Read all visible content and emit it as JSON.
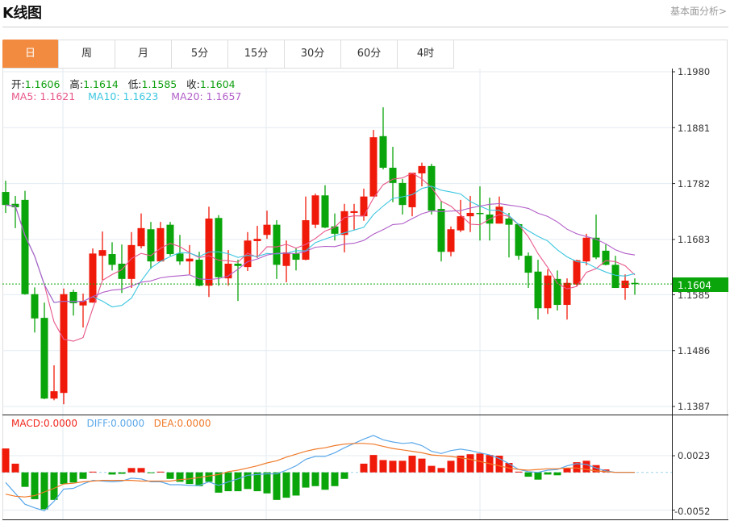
{
  "header": {
    "title": "K线图",
    "link": "基本面分析>"
  },
  "tabs": [
    {
      "label": "日",
      "active": true
    },
    {
      "label": "周"
    },
    {
      "label": "月"
    },
    {
      "label": "5分"
    },
    {
      "label": "15分"
    },
    {
      "label": "30分"
    },
    {
      "label": "60分"
    },
    {
      "label": "4时"
    }
  ],
  "ohlc_info": {
    "open_label": "开:",
    "open": "1.1606",
    "high_label": "高:",
    "high": "1.1614",
    "low_label": "低:",
    "low": "1.1585",
    "close_label": "收:",
    "close": "1.1604"
  },
  "ma_info": {
    "ma5": "MA5: 1.1621",
    "ma10": "MA10: 1.1623",
    "ma20": "MA20: 1.1657"
  },
  "macd_info": {
    "macd": "MACD:0.0000",
    "diff": "DIFF:0.0000",
    "dea": "DEA:0.0000"
  },
  "colors": {
    "up": "#f01a0a",
    "down": "#0aa50a",
    "accent": "#f28b40",
    "ma5": "#e8578a",
    "ma10": "#3cc6e0",
    "ma20": "#b15dc8",
    "diff": "#5aa8ea",
    "dea": "#f07a2a"
  },
  "chart_data": [
    {
      "type": "candlestick",
      "price_axis": {
        "ticks": [
          "1.1980",
          "1.1881",
          "1.1782",
          "1.1683",
          "1.1585",
          "1.1486",
          "1.1387"
        ],
        "range": [
          1.1387,
          1.198
        ]
      },
      "current_price": "1.1604",
      "grid": true,
      "moving_averages": [
        5,
        10,
        20
      ],
      "candles_ohlc": [
        [
          1.1767,
          1.1787,
          1.173,
          1.1744
        ],
        [
          1.1746,
          1.176,
          1.1703,
          1.174
        ],
        [
          1.1753,
          1.1769,
          1.1585,
          1.1586
        ],
        [
          1.1586,
          1.1598,
          1.1518,
          1.1543
        ],
        [
          1.1544,
          1.1571,
          1.14,
          1.1401
        ],
        [
          1.1401,
          1.146,
          1.1398,
          1.1414
        ],
        [
          1.1411,
          1.1596,
          1.1391,
          1.1586
        ],
        [
          1.159,
          1.1594,
          1.1548,
          1.157
        ],
        [
          1.1566,
          1.1587,
          1.1527,
          1.1574
        ],
        [
          1.1571,
          1.1667,
          1.1571,
          1.1658
        ],
        [
          1.1654,
          1.1697,
          1.1611,
          1.1664
        ],
        [
          1.1657,
          1.1678,
          1.1628,
          1.1638
        ],
        [
          1.164,
          1.1674,
          1.1588,
          1.1613
        ],
        [
          1.1613,
          1.1696,
          1.1597,
          1.1673
        ],
        [
          1.1671,
          1.1729,
          1.1667,
          1.1703
        ],
        [
          1.1701,
          1.1714,
          1.1631,
          1.1644
        ],
        [
          1.1644,
          1.1714,
          1.1644,
          1.1703
        ],
        [
          1.1709,
          1.1714,
          1.1654,
          1.1657
        ],
        [
          1.1658,
          1.1691,
          1.1638,
          1.1644
        ],
        [
          1.1644,
          1.1673,
          1.1621,
          1.1649
        ],
        [
          1.1647,
          1.1661,
          1.16,
          1.1601
        ],
        [
          1.1601,
          1.1741,
          1.1581,
          1.172
        ],
        [
          1.1721,
          1.1726,
          1.1601,
          1.1616
        ],
        [
          1.1614,
          1.1664,
          1.1601,
          1.164
        ],
        [
          1.164,
          1.1647,
          1.1574,
          1.1636
        ],
        [
          1.1634,
          1.1696,
          1.1627,
          1.1681
        ],
        [
          1.168,
          1.1707,
          1.165,
          1.1684
        ],
        [
          1.1691,
          1.1734,
          1.1684,
          1.1709
        ],
        [
          1.1709,
          1.1717,
          1.1613,
          1.1638
        ],
        [
          1.1636,
          1.1681,
          1.1607,
          1.166
        ],
        [
          1.1658,
          1.1667,
          1.1628,
          1.1647
        ],
        [
          1.1647,
          1.1759,
          1.1646,
          1.1717
        ],
        [
          1.1709,
          1.1764,
          1.1703,
          1.1761
        ],
        [
          1.1761,
          1.1779,
          1.1703,
          1.1704
        ],
        [
          1.1706,
          1.1729,
          1.1681,
          1.1693
        ],
        [
          1.1691,
          1.1746,
          1.166,
          1.1733
        ],
        [
          1.173,
          1.1746,
          1.17,
          1.1733
        ],
        [
          1.1724,
          1.1773,
          1.1716,
          1.1759
        ],
        [
          1.1759,
          1.1877,
          1.1759,
          1.1864
        ],
        [
          1.1866,
          1.1917,
          1.1807,
          1.181
        ],
        [
          1.181,
          1.1847,
          1.1749,
          1.1783
        ],
        [
          1.1783,
          1.179,
          1.1727,
          1.1744
        ],
        [
          1.174,
          1.1801,
          1.1724,
          1.1801
        ],
        [
          1.18,
          1.1819,
          1.1777,
          1.1813
        ],
        [
          1.1813,
          1.1817,
          1.1727,
          1.1734
        ],
        [
          1.1737,
          1.1751,
          1.1644,
          1.1661
        ],
        [
          1.1661,
          1.1706,
          1.1653,
          1.1701
        ],
        [
          1.1699,
          1.1753,
          1.1696,
          1.1724
        ],
        [
          1.1724,
          1.176,
          1.1696,
          1.173
        ],
        [
          1.173,
          1.1777,
          1.1681,
          1.1729
        ],
        [
          1.1727,
          1.1757,
          1.1681,
          1.1711
        ],
        [
          1.1711,
          1.1759,
          1.1711,
          1.1741
        ],
        [
          1.172,
          1.173,
          1.1651,
          1.1709
        ],
        [
          1.171,
          1.1711,
          1.1647,
          1.1654
        ],
        [
          1.1654,
          1.166,
          1.1597,
          1.1624
        ],
        [
          1.1626,
          1.1647,
          1.1541,
          1.1561
        ],
        [
          1.1561,
          1.163,
          1.1551,
          1.1619
        ],
        [
          1.1613,
          1.1628,
          1.1557,
          1.1567
        ],
        [
          1.1567,
          1.1614,
          1.1541,
          1.1606
        ],
        [
          1.1603,
          1.1647,
          1.1601,
          1.1646
        ],
        [
          1.1644,
          1.1693,
          1.1637,
          1.1686
        ],
        [
          1.1686,
          1.1727,
          1.1648,
          1.1651
        ],
        [
          1.1663,
          1.1674,
          1.1637,
          1.1638
        ],
        [
          1.1638,
          1.1654,
          1.1597,
          1.1597
        ],
        [
          1.1597,
          1.1621,
          1.1576,
          1.161
        ],
        [
          1.1606,
          1.1614,
          1.1585,
          1.1604
        ]
      ]
    },
    {
      "type": "macd",
      "axis": {
        "ticks": [
          "0.0023",
          "-0.0052"
        ]
      },
      "histogram": [
        0.0033,
        0.0012,
        -0.002,
        -0.0037,
        -0.0051,
        -0.0038,
        -0.0016,
        -0.0014,
        -0.0009,
        0.0001,
        0,
        -0.0003,
        -0.0002,
        0.0006,
        0.0006,
        -0.0001,
        0.0001,
        -0.0009,
        -0.0013,
        -0.0016,
        -0.0019,
        -0.0013,
        -0.0028,
        -0.0026,
        -0.0026,
        -0.0023,
        -0.0026,
        -0.0029,
        -0.0038,
        -0.0035,
        -0.0032,
        -0.0021,
        -0.0019,
        -0.0024,
        -0.0019,
        -0.0009,
        0,
        0.0012,
        0.0024,
        0.0017,
        0.0016,
        0.0016,
        0.0023,
        0.0019,
        0.0009,
        0.0006,
        0.0016,
        0.0023,
        0.0025,
        0.0026,
        0.0024,
        0.0023,
        0.0013,
        0.0001,
        -0.0006,
        -0.001,
        -0.0003,
        -0.0004,
        0.0006,
        0.0014,
        0.0016,
        0.001,
        0.0004,
        0,
        0,
        0
      ],
      "diff": [
        -0.0014,
        -0.0029,
        -0.0044,
        -0.0049,
        -0.0053,
        -0.004,
        -0.0023,
        -0.0022,
        -0.0016,
        -0.0011,
        -0.0012,
        -0.0013,
        -0.0012,
        -0.0008,
        -0.0009,
        -0.0013,
        -0.0013,
        -0.0017,
        -0.0017,
        -0.0018,
        -0.0018,
        -0.0013,
        -0.0018,
        -0.0013,
        -0.0009,
        -0.0004,
        -0.0003,
        -0.0002,
        -0.0002,
        0.0003,
        0.0009,
        0.0018,
        0.0022,
        0.0022,
        0.0027,
        0.0034,
        0.004,
        0.0046,
        0.0051,
        0.0045,
        0.0042,
        0.004,
        0.0041,
        0.0037,
        0.0029,
        0.0026,
        0.003,
        0.0032,
        0.003,
        0.0027,
        0.0024,
        0.0019,
        0.0012,
        0.0004,
        0.0001,
        0,
        0.0003,
        0.0004,
        0.0009,
        0.0012,
        0.0011,
        0.0006,
        0.0002,
        0,
        0,
        0
      ],
      "dea": [
        -0.003,
        -0.0033,
        -0.0034,
        -0.0032,
        -0.0027,
        -0.0022,
        -0.0016,
        -0.0015,
        -0.0013,
        -0.0012,
        -0.0011,
        -0.0011,
        -0.0011,
        -0.0011,
        -0.0012,
        -0.0012,
        -0.0012,
        -0.0012,
        -0.001,
        -0.0009,
        -0.0007,
        -0.0005,
        -0.0003,
        0.0001,
        0.0003,
        0.0006,
        0.0009,
        0.0013,
        0.0016,
        0.0021,
        0.0025,
        0.0029,
        0.0032,
        0.0034,
        0.0037,
        0.0039,
        0.004,
        0.004,
        0.0039,
        0.0036,
        0.0033,
        0.0031,
        0.0029,
        0.0027,
        0.0024,
        0.0023,
        0.0022,
        0.002,
        0.0018,
        0.0015,
        0.0012,
        0.0009,
        0.0006,
        0.0004,
        0.0003,
        0.0004,
        0.0005,
        0.0005,
        0.0006,
        0.0006,
        0.0004,
        0.0002,
        0.0001,
        0,
        0,
        0
      ]
    }
  ]
}
